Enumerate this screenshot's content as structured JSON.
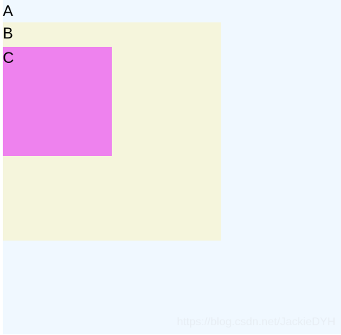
{
  "box_a": {
    "label": "A",
    "color": "#f0f8ff"
  },
  "box_b": {
    "label": "B",
    "color": "#f5f5dc"
  },
  "box_c": {
    "label": "C",
    "color": "#ee82ee"
  },
  "watermark": "https://blog.csdn.net/JackieDYH"
}
